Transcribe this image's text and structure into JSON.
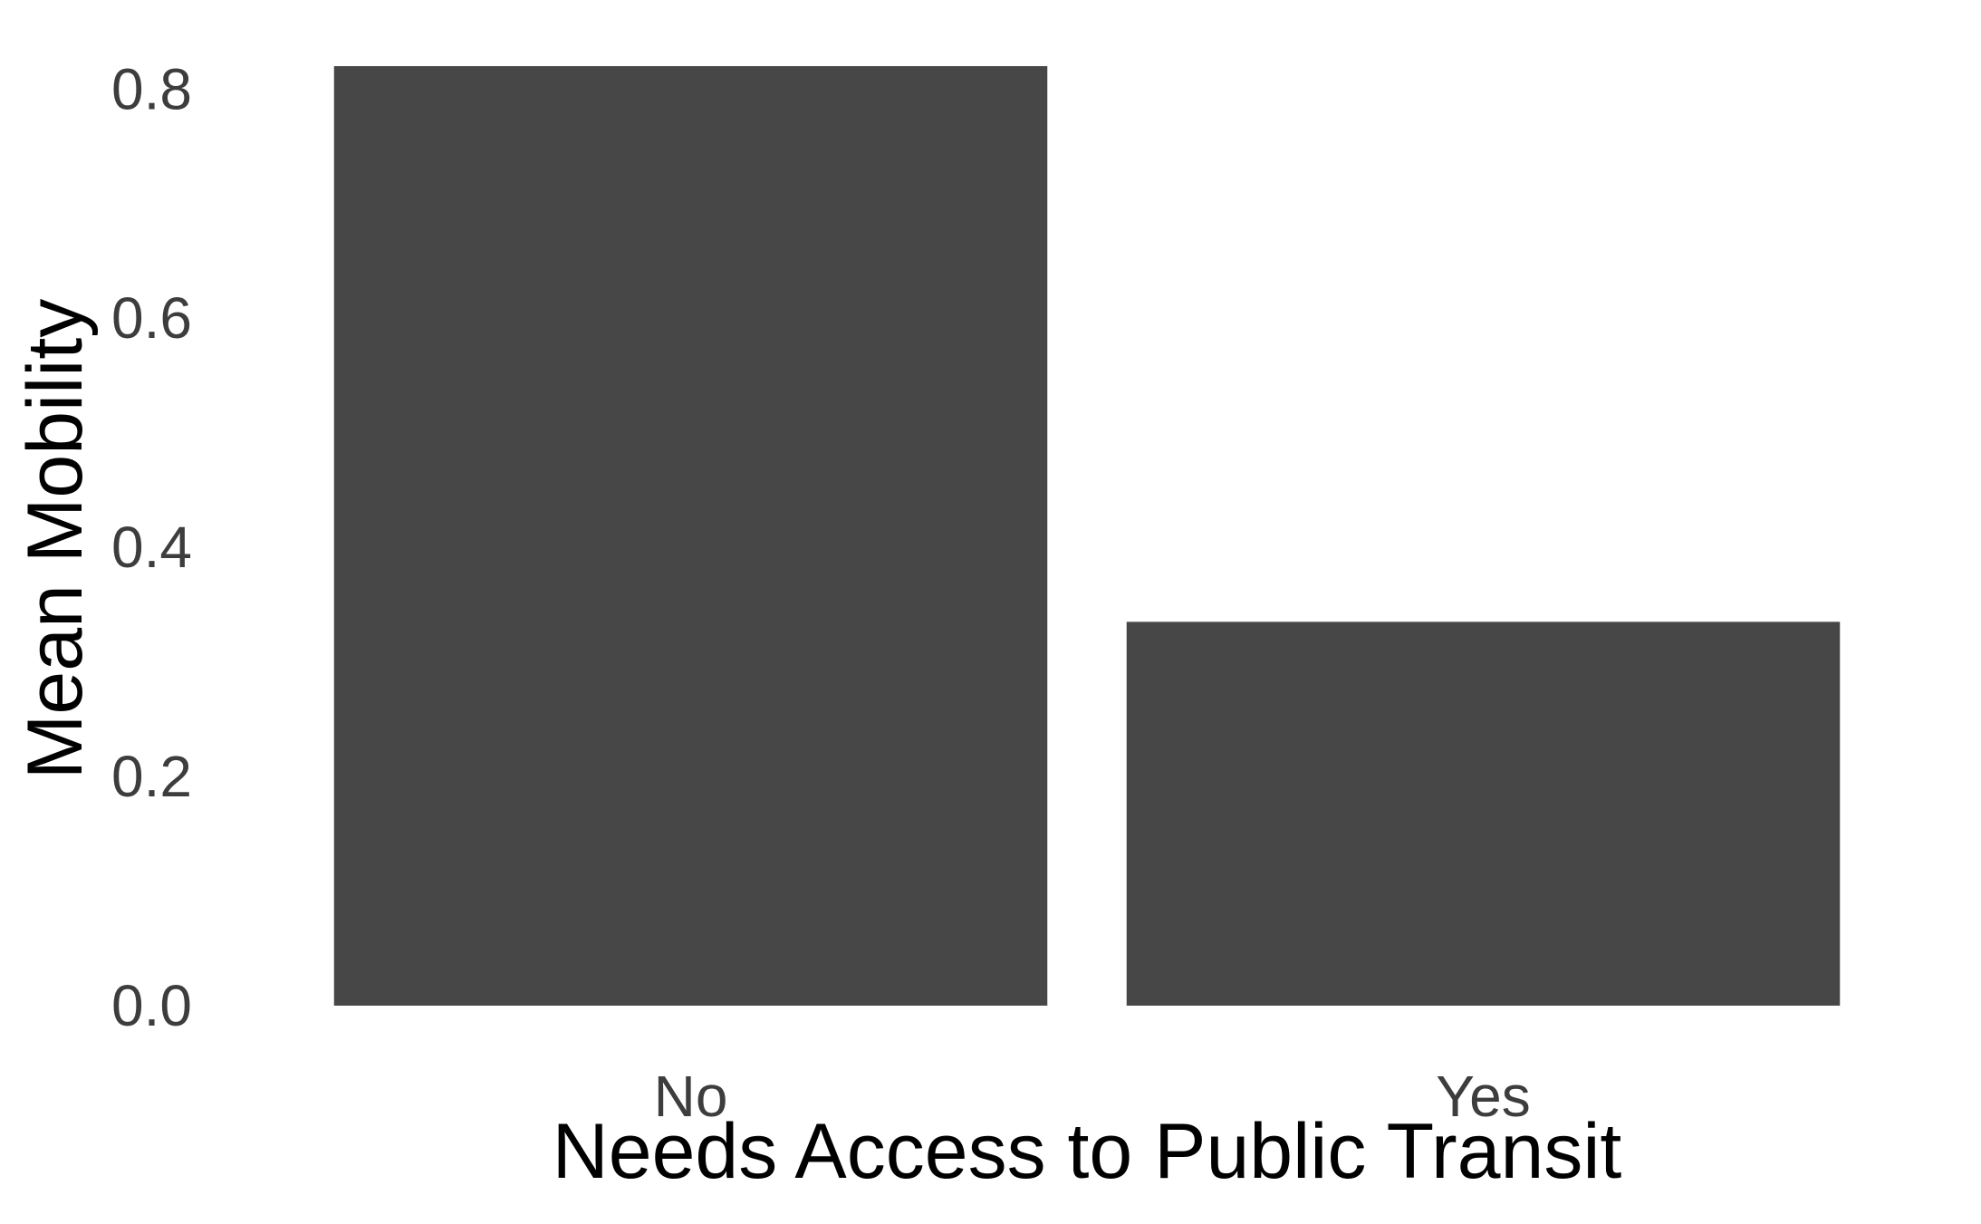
{
  "chart_data": {
    "type": "bar",
    "categories": [
      "No",
      "Yes"
    ],
    "values": [
      0.82,
      0.335
    ],
    "xlabel": "Needs Access to Public Transit",
    "ylabel": "Mean Mobility",
    "ylim": [
      0,
      0.82
    ],
    "yticks": [
      0.0,
      0.2,
      0.4,
      0.6,
      0.8
    ],
    "ytick_labels": [
      "0.0",
      "0.2",
      "0.4",
      "0.6",
      "0.8"
    ],
    "grid": false,
    "legend": "none",
    "bar_color": "#474747",
    "tick_color": "#3d3d3d",
    "title_color": "#000000"
  }
}
